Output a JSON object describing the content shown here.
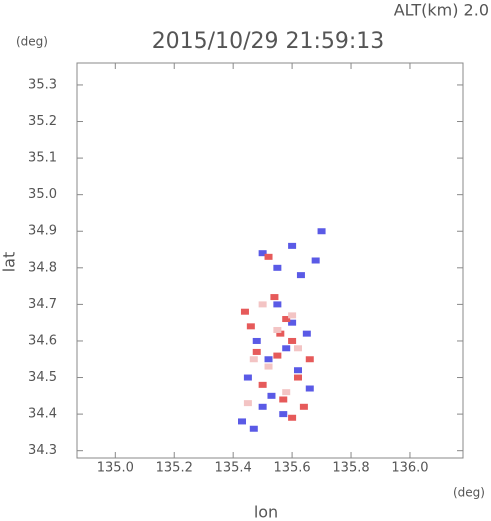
{
  "chart_data": {
    "type": "scatter",
    "title": "2015/10/29 21:59:13",
    "subtitle": "ALT(km) 2.0",
    "x_label": "lon",
    "y_label": "lat",
    "x_unit": "(deg)",
    "y_unit": "(deg)",
    "xlim": [
      134.87,
      136.18
    ],
    "ylim": [
      34.28,
      35.36
    ],
    "xticks": [
      {
        "value": 135,
        "label": "135.0"
      },
      135.2,
      135.4,
      135.6,
      135.8,
      {
        "value": 136,
        "label": "136.0"
      }
    ],
    "yticks": [
      34.3,
      34.4,
      34.5,
      34.6,
      34.7,
      34.8,
      34.9,
      {
        "value": 35,
        "label": "35.0"
      },
      35.1,
      35.2,
      35.3
    ],
    "series": [
      {
        "color": "#5a5ae6",
        "x": [
          135.5,
          135.55,
          135.6,
          135.63,
          135.48,
          135.52,
          135.58,
          135.45,
          135.62,
          135.66,
          135.5,
          135.57,
          135.43,
          135.6,
          135.68,
          135.55,
          135.53,
          135.47,
          135.65,
          135.7
        ],
        "y": [
          34.84,
          34.8,
          34.86,
          34.78,
          34.6,
          34.55,
          34.58,
          34.5,
          34.52,
          34.47,
          34.42,
          34.4,
          34.38,
          34.65,
          34.82,
          34.7,
          34.45,
          34.36,
          34.62,
          34.9
        ]
      },
      {
        "color": "#e65a5a",
        "x": [
          135.52,
          135.58,
          135.46,
          135.6,
          135.55,
          135.62,
          135.5,
          135.57,
          135.44,
          135.64,
          135.54,
          135.6,
          135.48,
          135.66,
          135.56
        ],
        "y": [
          34.83,
          34.66,
          34.64,
          34.6,
          34.56,
          34.5,
          34.48,
          34.44,
          34.68,
          34.42,
          34.72,
          34.39,
          34.57,
          34.55,
          34.62
        ]
      },
      {
        "color": "#f3c4c4",
        "x": [
          135.5,
          135.55,
          135.6,
          135.47,
          135.58,
          135.52,
          135.62,
          135.45
        ],
        "y": [
          34.7,
          34.63,
          34.67,
          34.55,
          34.46,
          34.53,
          34.58,
          34.43
        ]
      }
    ]
  }
}
